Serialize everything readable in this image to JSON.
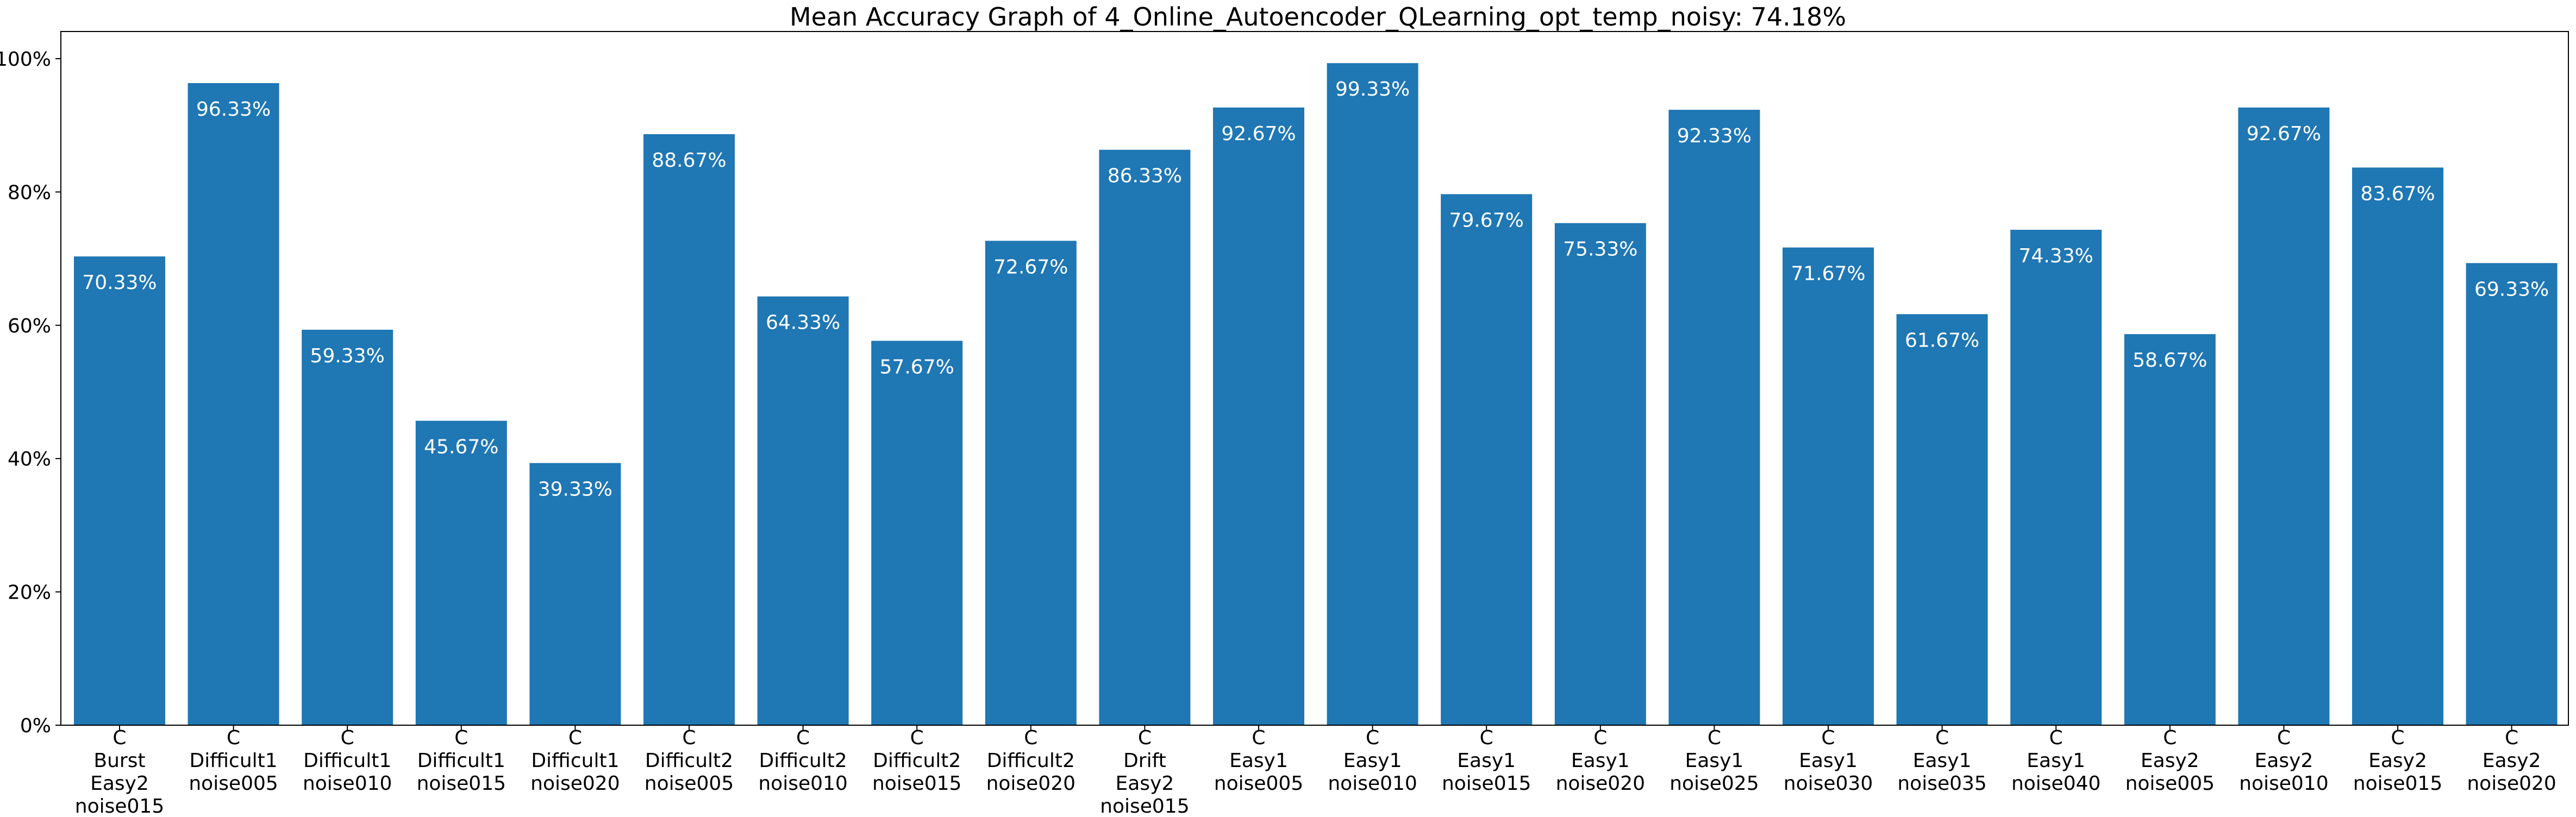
{
  "chart_data": {
    "type": "bar",
    "title": "Mean Accuracy Graph of 4_Online_Autoencoder_QLearning_opt_temp_noisy: 74.18%",
    "xlabel": "",
    "ylabel": "",
    "ylim": [
      0,
      100
    ],
    "grid": false,
    "legend": "none",
    "bar_color": "#1f77b4",
    "label_color": "#ffffff",
    "y_ticks": [
      {
        "value": 0,
        "label": "0%"
      },
      {
        "value": 20,
        "label": "20%"
      },
      {
        "value": 40,
        "label": "40%"
      },
      {
        "value": 60,
        "label": "60%"
      },
      {
        "value": 80,
        "label": "80%"
      },
      {
        "value": 100,
        "label": "100%"
      }
    ],
    "categories": [
      [
        "C",
        "Burst",
        "Easy2",
        "noise015"
      ],
      [
        "C",
        "Difficult1",
        "noise005"
      ],
      [
        "C",
        "Difficult1",
        "noise010"
      ],
      [
        "C",
        "Difficult1",
        "noise015"
      ],
      [
        "C",
        "Difficult1",
        "noise020"
      ],
      [
        "C",
        "Difficult2",
        "noise005"
      ],
      [
        "C",
        "Difficult2",
        "noise010"
      ],
      [
        "C",
        "Difficult2",
        "noise015"
      ],
      [
        "C",
        "Difficult2",
        "noise020"
      ],
      [
        "C",
        "Drift",
        "Easy2",
        "noise015"
      ],
      [
        "C",
        "Easy1",
        "noise005"
      ],
      [
        "C",
        "Easy1",
        "noise010"
      ],
      [
        "C",
        "Easy1",
        "noise015"
      ],
      [
        "C",
        "Easy1",
        "noise020"
      ],
      [
        "C",
        "Easy1",
        "noise025"
      ],
      [
        "C",
        "Easy1",
        "noise030"
      ],
      [
        "C",
        "Easy1",
        "noise035"
      ],
      [
        "C",
        "Easy1",
        "noise040"
      ],
      [
        "C",
        "Easy2",
        "noise005"
      ],
      [
        "C",
        "Easy2",
        "noise010"
      ],
      [
        "C",
        "Easy2",
        "noise015"
      ],
      [
        "C",
        "Easy2",
        "noise020"
      ]
    ],
    "values": [
      70.33,
      96.33,
      59.33,
      45.67,
      39.33,
      88.67,
      64.33,
      57.67,
      72.67,
      86.33,
      92.67,
      99.33,
      79.67,
      75.33,
      92.33,
      71.67,
      61.67,
      74.33,
      58.67,
      92.67,
      83.67,
      69.33
    ],
    "data_labels": [
      "70.33%",
      "96.33%",
      "59.33%",
      "45.67%",
      "39.33%",
      "88.67%",
      "64.33%",
      "57.67%",
      "72.67%",
      "86.33%",
      "92.67%",
      "99.33%",
      "79.67%",
      "75.33%",
      "92.33%",
      "71.67%",
      "61.67%",
      "74.33%",
      "58.67%",
      "92.67%",
      "83.67%",
      "69.33%"
    ]
  }
}
